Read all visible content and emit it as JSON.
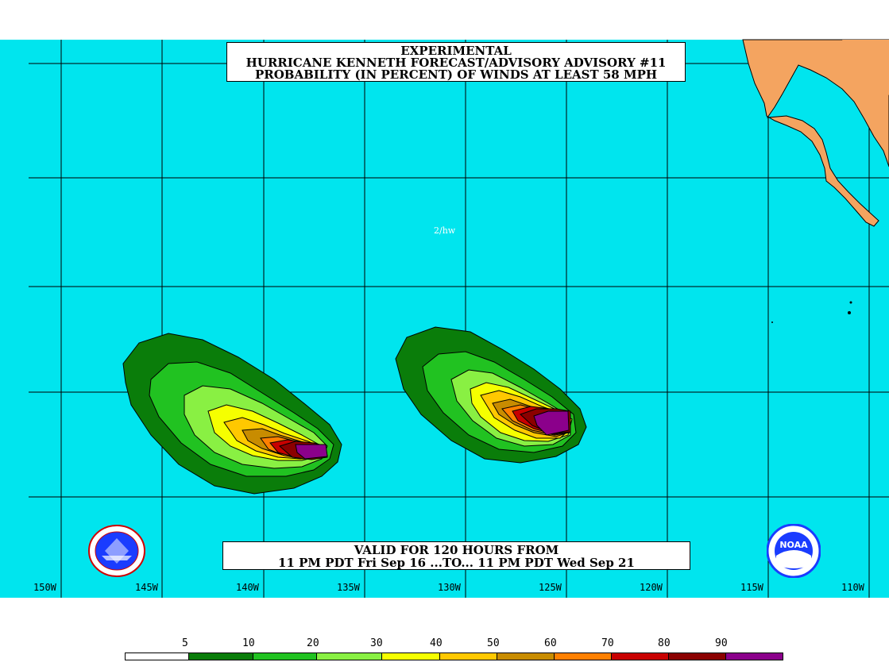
{
  "title": {
    "line1": "EXPERIMENTAL",
    "line2": "HURRICANE KENNETH FORECAST/ADVISORY ADVISORY #11",
    "line3": "PROBABILITY (IN PERCENT) OF WINDS AT LEAST 58 MPH"
  },
  "valid": {
    "line1": "VALID FOR 120 HOURS FROM",
    "line2": "11 PM PDT Fri Sep 16 ...TO... 11 PM PDT Wed Sep 21"
  },
  "credit": "2/hw",
  "longitudes": [
    "150W",
    "145W",
    "140W",
    "135W",
    "130W",
    "125W",
    "120W",
    "115W",
    "110W"
  ],
  "legend": {
    "thresholds": [
      "5",
      "10",
      "20",
      "30",
      "40",
      "50",
      "60",
      "70",
      "80",
      "90"
    ],
    "colors": [
      "#ffffff",
      "#0a7d0a",
      "#21c221",
      "#89f043",
      "#f5ff00",
      "#ffc800",
      "#c88c00",
      "#ff8000",
      "#c80000",
      "#8b0000",
      "#8b008b"
    ]
  },
  "colors": {
    "ocean": "#00e5ee",
    "land": "#f4a460",
    "grid": "#000000"
  },
  "logos": {
    "left": "nws-logo",
    "right": "noaa-logo",
    "right_text": "NOAA"
  }
}
